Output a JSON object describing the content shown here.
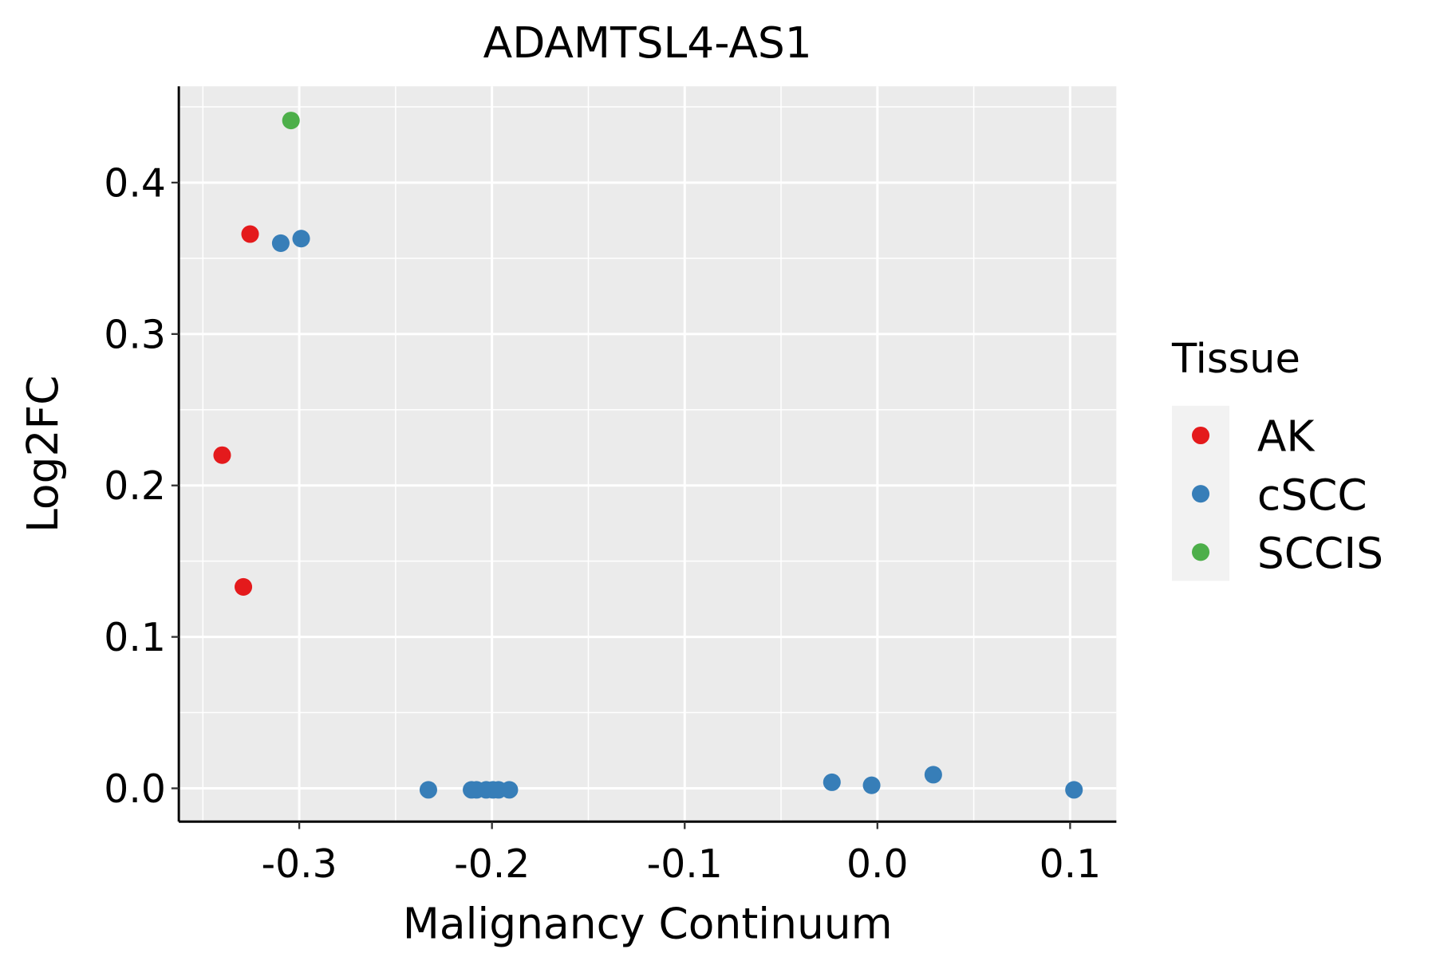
{
  "chart_data": {
    "type": "scatter",
    "title": "ADAMTSL4-AS1",
    "xlabel": "Malignancy Continuum",
    "ylabel": "Log2FC",
    "xlim": [
      -0.3625,
      0.124
    ],
    "ylim": [
      -0.022,
      0.4636
    ],
    "xticks": [
      -0.3,
      -0.2,
      -0.1,
      0.0,
      0.1
    ],
    "xtick_labels": [
      "-0.3",
      "-0.2",
      "-0.1",
      "0.0",
      "0.1"
    ],
    "yticks": [
      0.0,
      0.1,
      0.2,
      0.3,
      0.4
    ],
    "ytick_labels": [
      "0.0",
      "0.1",
      "0.2",
      "0.3",
      "0.4"
    ],
    "grid": true,
    "legend": {
      "title": "Tissue",
      "placement": "right"
    },
    "series": [
      {
        "name": "AK",
        "color": "#E41A1C",
        "points": [
          [
            -0.3255,
            0.366
          ],
          [
            -0.34,
            0.22
          ],
          [
            -0.329,
            0.133
          ]
        ]
      },
      {
        "name": "cSCC",
        "color": "#377EB8",
        "points": [
          [
            -0.3096,
            0.36
          ],
          [
            -0.299,
            0.363
          ],
          [
            -0.233,
            -0.001
          ],
          [
            -0.2106,
            -0.001
          ],
          [
            -0.208,
            -0.001
          ],
          [
            -0.203,
            -0.001
          ],
          [
            -0.1995,
            -0.001
          ],
          [
            -0.1966,
            -0.001
          ],
          [
            -0.191,
            -0.001
          ],
          [
            -0.0236,
            0.004
          ],
          [
            -0.003,
            0.002
          ],
          [
            0.029,
            0.009
          ],
          [
            0.102,
            -0.001
          ]
        ]
      },
      {
        "name": "SCCIS",
        "color": "#4DAF4A",
        "points": [
          [
            -0.3043,
            0.441
          ]
        ]
      }
    ]
  }
}
